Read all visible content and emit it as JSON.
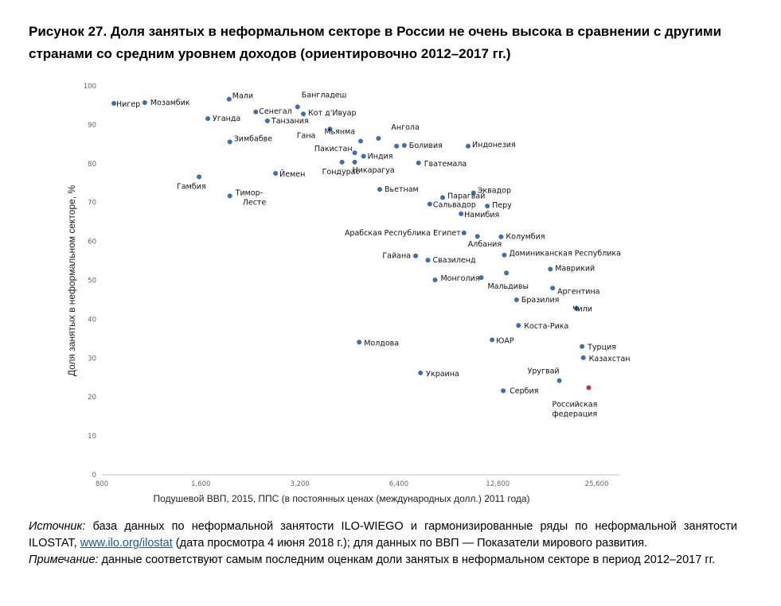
{
  "figure": {
    "title": "Рисунок 27. Доля занятых в неформальном секторе в России не очень высока в сравнении с другими странами со средним уровнем доходов (ориентировочно 2012–2017 гг.)"
  },
  "chart_data": {
    "type": "scatter",
    "xlabel": "Подушевой ВВП, 2015, ППС (в постоянных ценах (международных долл.) 2011 года)",
    "ylabel": "Доля занятых в неформальном секторе, %",
    "x_scale": "log",
    "xlim": [
      800,
      30000
    ],
    "ylim": [
      0,
      100
    ],
    "x_ticks": [
      800,
      1600,
      3200,
      6400,
      12800,
      25600
    ],
    "x_tick_labels": [
      "800",
      "1,600",
      "3,200",
      "6,400",
      "12,800",
      "25,600"
    ],
    "y_ticks": [
      0,
      10,
      20,
      30,
      40,
      50,
      60,
      70,
      80,
      90,
      100
    ],
    "y_tick_labels": [
      "0",
      "10",
      "20",
      "30",
      "40",
      "50",
      "60",
      "70",
      "80",
      "90",
      "100"
    ],
    "grid": false,
    "colors": {
      "point": "#3d6fae",
      "highlight": "#b5374a"
    },
    "points": [
      {
        "label": "Нигер",
        "x": 870,
        "y": 95.5
      },
      {
        "label": "Мозамбик",
        "x": 1080,
        "y": 95.7
      },
      {
        "label": "Мали",
        "x": 1950,
        "y": 96.6
      },
      {
        "label": "Уганда",
        "x": 1680,
        "y": 91.6
      },
      {
        "label": "Сенегал",
        "x": 2350,
        "y": 93.3
      },
      {
        "label": "Танзания",
        "x": 2550,
        "y": 91.0
      },
      {
        "label": "Бангладеш",
        "x": 3150,
        "y": 94.6
      },
      {
        "label": "Кот д'Ивуар",
        "x": 3280,
        "y": 92.8
      },
      {
        "label": "Зимбабве",
        "x": 1960,
        "y": 85.6
      },
      {
        "label": "Гана",
        "x": 3950,
        "y": 88.9
      },
      {
        "label": "Мьянма",
        "x": 4900,
        "y": 85.8
      },
      {
        "label": "Ангола",
        "x": 5550,
        "y": 86.5
      },
      {
        "label": "Боливия",
        "x": 6650,
        "y": 84.7
      },
      {
        "label": "",
        "x": 6300,
        "y": 84.5
      },
      {
        "label": "Индонезия",
        "x": 10400,
        "y": 84.5
      },
      {
        "label": "Пакистан",
        "x": 4700,
        "y": 82.8
      },
      {
        "label": "Индия",
        "x": 5000,
        "y": 81.9
      },
      {
        "label": "Гондурас",
        "x": 4300,
        "y": 80.4
      },
      {
        "label": "Никарагуа",
        "x": 4700,
        "y": 80.4
      },
      {
        "label": "Гватемала",
        "x": 7350,
        "y": 80.2
      },
      {
        "label": "Гамбия",
        "x": 1580,
        "y": 76.6
      },
      {
        "label": "Йемен",
        "x": 2700,
        "y": 77.5
      },
      {
        "label": "Тимор-Лесте",
        "x": 1960,
        "y": 71.7
      },
      {
        "label": "Вьетнам",
        "x": 5600,
        "y": 73.4
      },
      {
        "label": "Эквадор",
        "x": 10800,
        "y": 72.5
      },
      {
        "label": "Парагвай",
        "x": 8700,
        "y": 71.3
      },
      {
        "label": "Сальвадор",
        "x": 7950,
        "y": 69.6
      },
      {
        "label": "Перу",
        "x": 11900,
        "y": 69.1
      },
      {
        "label": "Намибия",
        "x": 9900,
        "y": 67.1
      },
      {
        "label": "Арабская Республика Египет",
        "x": 10100,
        "y": 62.2
      },
      {
        "label": "Албания",
        "x": 11100,
        "y": 61.3
      },
      {
        "label": "Колумбия",
        "x": 13100,
        "y": 61.2
      },
      {
        "label": "Гайана",
        "x": 7200,
        "y": 56.3
      },
      {
        "label": "Свазиленд",
        "x": 7850,
        "y": 55.2
      },
      {
        "label": "Доминиканская Республика",
        "x": 13400,
        "y": 56.5
      },
      {
        "label": "Маврикий",
        "x": 18500,
        "y": 52.9
      },
      {
        "label": "",
        "x": 13600,
        "y": 51.9
      },
      {
        "label": "Монголия",
        "x": 8250,
        "y": 50.1
      },
      {
        "label": "Мальдивы",
        "x": 11400,
        "y": 50.7
      },
      {
        "label": "Аргентина",
        "x": 18800,
        "y": 48.0
      },
      {
        "label": "Бразилия",
        "x": 14600,
        "y": 45.0
      },
      {
        "label": "Чили",
        "x": 22200,
        "y": 42.8
      },
      {
        "label": "Коста-Рика",
        "x": 14800,
        "y": 38.4
      },
      {
        "label": "ЮАР",
        "x": 12300,
        "y": 34.7
      },
      {
        "label": "Молдова",
        "x": 4850,
        "y": 34.1
      },
      {
        "label": "Турция",
        "x": 23100,
        "y": 33.0
      },
      {
        "label": "Казахстан",
        "x": 23300,
        "y": 30.1
      },
      {
        "label": "Украина",
        "x": 7450,
        "y": 26.2
      },
      {
        "label": "Уругвай",
        "x": 19700,
        "y": 24.2
      },
      {
        "label": "Сербия",
        "x": 13300,
        "y": 21.6
      },
      {
        "label": "Российская федерация",
        "x": 24200,
        "y": 22.4,
        "highlight": true
      }
    ]
  },
  "notes": {
    "source_label": "Источник:",
    "source_text_1": " база данных по неформальной занятости ILO-WIEGO и гармонизированные ряды по неформальной занятости ILOSTAT, ",
    "source_link": "www.ilo.org/ilostat",
    "source_text_2": " (дата просмотра 4 июня 2018 г.); для данных по ВВП — Показатели мирового развития.",
    "note_label": "Примечание:",
    "note_text": " данные соответствуют самым последним оценкам доли занятых в неформальном секторе в период 2012–2017 гг."
  }
}
